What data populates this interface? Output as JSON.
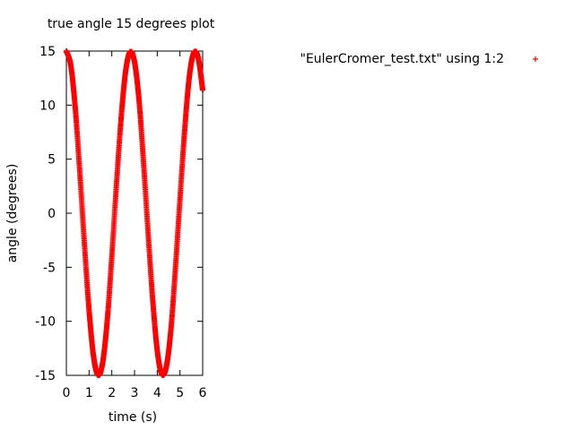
{
  "chart_data": {
    "type": "scatter",
    "title": "true angle 15 degrees plot",
    "xlabel": "time (s)",
    "ylabel": "angle (degrees)",
    "xlim": [
      0,
      6
    ],
    "ylim": [
      -15,
      15
    ],
    "x_ticks": [
      0,
      1,
      2,
      3,
      4,
      5,
      6
    ],
    "y_ticks": [
      -15,
      -10,
      -5,
      0,
      5,
      10,
      15
    ],
    "x_tick_labels": [
      "0",
      "1",
      "2",
      "3",
      "4",
      "5",
      "6"
    ],
    "y_tick_labels": [
      "-15",
      "-10",
      "-5",
      "0",
      "5",
      "10",
      "15"
    ],
    "grid": false,
    "legend_position": "top-right",
    "series": [
      {
        "name": "\"EulerCromer_test.txt\" using 1:2",
        "color": "#ff0000",
        "marker": "+",
        "x": [
          0.0,
          0.2,
          0.4,
          0.6,
          0.8,
          1.0,
          1.2,
          1.4,
          1.6,
          1.8,
          2.0,
          2.2,
          2.4,
          2.6,
          2.8,
          3.0,
          3.2,
          3.4,
          3.6,
          3.8,
          4.0,
          4.2,
          4.4,
          4.6,
          4.8,
          5.0,
          5.2,
          5.4,
          5.6,
          5.8,
          6.0
        ],
        "y": [
          15.0,
          13.6,
          9.5,
          3.5,
          -3.0,
          -9.0,
          -13.3,
          -15.0,
          -13.8,
          -9.9,
          -4.0,
          2.5,
          8.5,
          13.0,
          14.9,
          14.0,
          10.4,
          4.6,
          -1.9,
          -8.0,
          -12.7,
          -14.9,
          -14.2,
          -10.8,
          -5.1,
          1.3,
          7.5,
          12.4,
          14.8,
          14.4,
          11.4
        ]
      }
    ]
  }
}
